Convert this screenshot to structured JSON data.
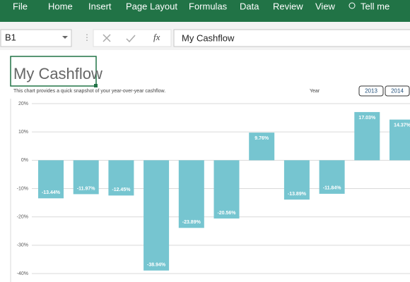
{
  "ribbon": {
    "tabs": [
      "File",
      "Home",
      "Insert",
      "Page Layout",
      "Formulas",
      "Data",
      "Review",
      "View",
      "Tell me"
    ]
  },
  "formula_bar": {
    "name_box": "B1",
    "fx": "fx",
    "content": "My Cashflow"
  },
  "sheet": {
    "title_cell": "My Cashflow",
    "description": "This chart provides a quick snapshot of your year-over-year cashflow.",
    "year_label": "Year",
    "year_buttons": [
      "2013",
      "2014"
    ]
  },
  "chart_data": {
    "type": "bar",
    "categories": [
      null,
      null,
      null,
      null,
      null,
      null,
      null,
      null,
      null,
      null,
      null
    ],
    "values": [
      -13.44,
      -11.97,
      -12.45,
      -38.94,
      -23.89,
      -20.56,
      9.76,
      -13.89,
      -11.84,
      17.03,
      14.37
    ],
    "value_labels": [
      "-13.44%",
      "-11.97%",
      "-12.45%",
      "-38.94%",
      "-23.89%",
      "-20.56%",
      "9.76%",
      "-13.89%",
      "-11.84%",
      "17.03%",
      "14.37%"
    ],
    "color": "#76c5d0",
    "ylim": [
      -40,
      20
    ],
    "yticks": [
      {
        "value": 20,
        "label": "20%"
      },
      {
        "value": 10,
        "label": "10%"
      },
      {
        "value": 0,
        "label": "0%"
      },
      {
        "value": -10,
        "label": "-10%"
      },
      {
        "value": -20,
        "label": "-20%"
      },
      {
        "value": -30,
        "label": "-30%"
      },
      {
        "value": -40,
        "label": "-40%"
      }
    ],
    "grid": true
  }
}
